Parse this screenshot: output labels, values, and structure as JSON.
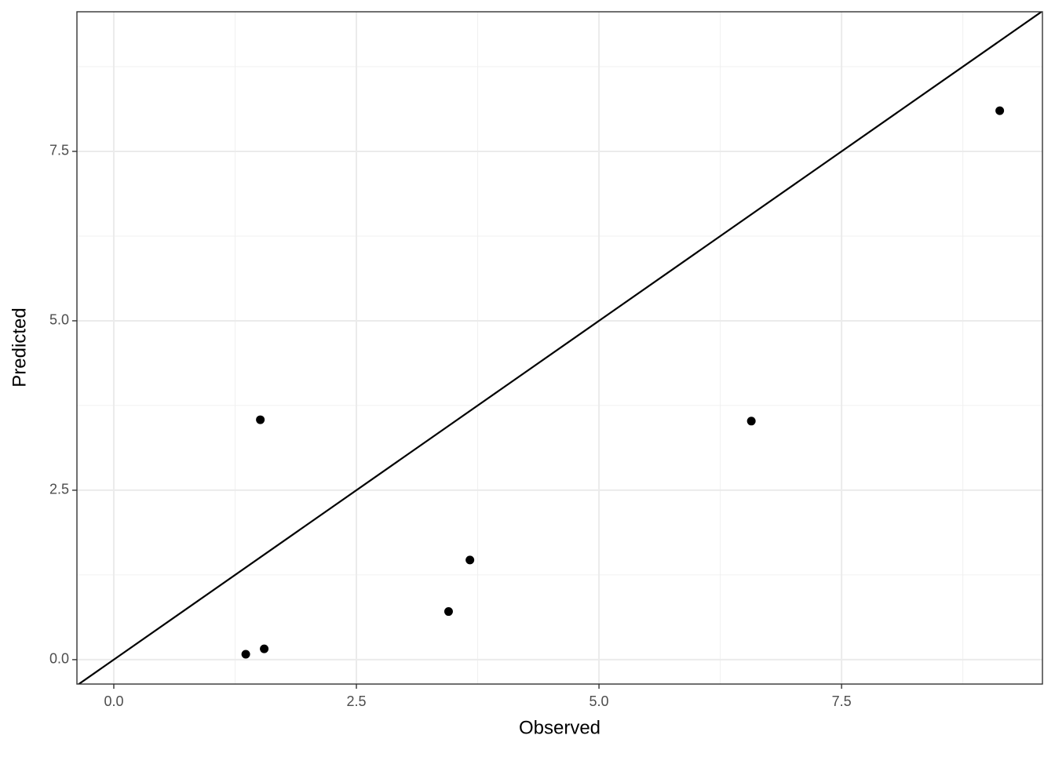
{
  "chart_data": {
    "type": "scatter",
    "x_label": "Observed",
    "y_label": "Predicted",
    "x": [
      1.36,
      1.55,
      1.51,
      3.45,
      3.67,
      6.57,
      9.13
    ],
    "values": [
      0.08,
      0.16,
      3.54,
      0.71,
      1.47,
      3.52,
      8.1
    ],
    "color": "#000000",
    "xlim": [
      -0.38,
      9.57
    ],
    "ylim": [
      -0.36,
      9.56
    ],
    "xticks": [
      {
        "value": 0,
        "label": "0.0"
      },
      2.5,
      {
        "value": 5,
        "label": "5.0"
      },
      7.5
    ],
    "yticks": [
      {
        "value": 0,
        "label": "0.0"
      },
      2.5,
      {
        "value": 5,
        "label": "5.0"
      },
      7.5
    ],
    "x_minor_grid": [
      1.25,
      3.75,
      6.25,
      8.75
    ],
    "y_minor_grid": [
      1.25,
      3.75,
      6.25,
      8.75
    ],
    "grid": true,
    "identity_line": true
  }
}
